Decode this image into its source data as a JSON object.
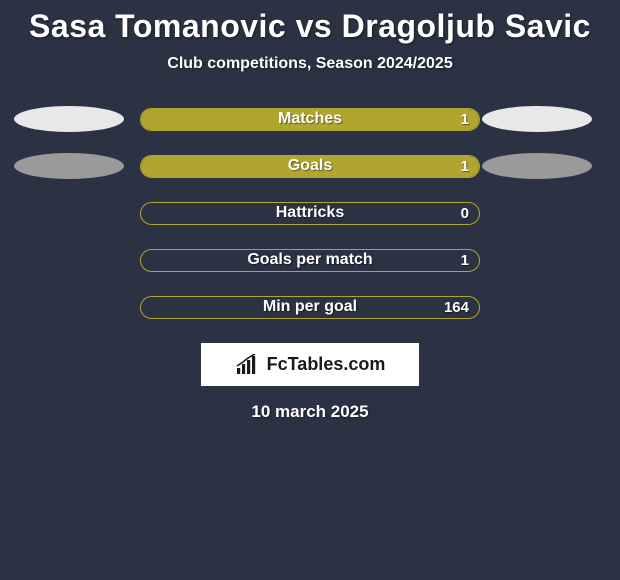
{
  "background_color": "#2a3243",
  "text_color": "#ffffff",
  "title": {
    "text": "Sasa Tomanovic vs Dragoljub Savic",
    "fontsize": 32,
    "color": "#ffffff"
  },
  "subtitle": {
    "text": "Club competitions, Season 2024/2025",
    "fontsize": 16,
    "color": "#ffffff"
  },
  "stats": {
    "bar_track_border_color": "#b0a52f",
    "bar_track_bg_color": "#2a3243",
    "bar_fill_color": "#b0a52f",
    "ellipse_color": "#e8e8e8",
    "ellipse_color_dim": "#9a9a9a",
    "label_color": "#ffffff",
    "label_fontsize": 16,
    "value_fontsize": 15,
    "rows": [
      {
        "label": "Matches",
        "left_val": "",
        "right_val": "1",
        "fill_pct": 100,
        "left_ellipse": true,
        "right_ellipse": true,
        "left_ellipse_dim": false,
        "right_ellipse_dim": false
      },
      {
        "label": "Goals",
        "left_val": "",
        "right_val": "1",
        "fill_pct": 100,
        "left_ellipse": true,
        "right_ellipse": true,
        "left_ellipse_dim": true,
        "right_ellipse_dim": true
      },
      {
        "label": "Hattricks",
        "left_val": "",
        "right_val": "0",
        "fill_pct": 0,
        "left_ellipse": false,
        "right_ellipse": false,
        "left_ellipse_dim": false,
        "right_ellipse_dim": false
      },
      {
        "label": "Goals per match",
        "left_val": "",
        "right_val": "1",
        "fill_pct": 0,
        "left_ellipse": false,
        "right_ellipse": false,
        "left_ellipse_dim": false,
        "right_ellipse_dim": false
      },
      {
        "label": "Min per goal",
        "left_val": "",
        "right_val": "164",
        "fill_pct": 0,
        "left_ellipse": false,
        "right_ellipse": false,
        "left_ellipse_dim": false,
        "right_ellipse_dim": false
      }
    ]
  },
  "brand": {
    "box_bg": "#ffffff",
    "text": "FcTables.com",
    "text_color": "#1a1a1a",
    "text_fontsize": 18,
    "icon_color": "#1a1a1a"
  },
  "date": {
    "text": "10 march 2025",
    "fontsize": 17,
    "color": "#ffffff"
  }
}
